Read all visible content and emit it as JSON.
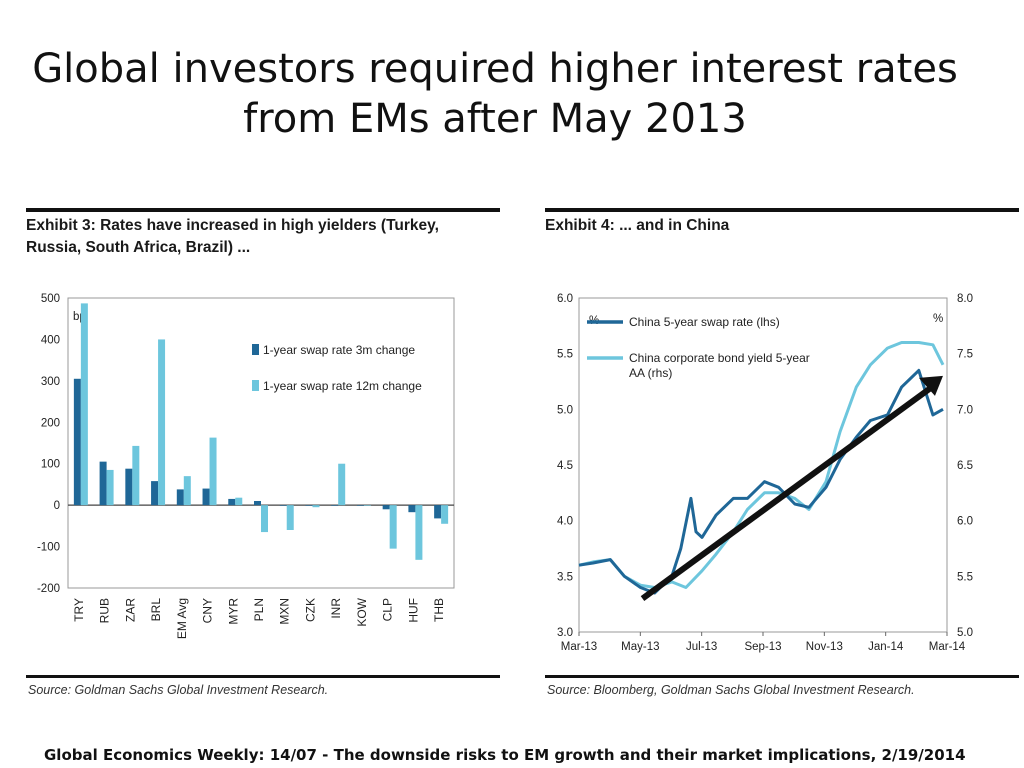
{
  "slide": {
    "title_line1": "Global investors required higher interest rates",
    "title_line2": "from EMs after May 2013",
    "footer": "Global Economics Weekly: 14/07 - The downside risks to EM growth and their market implications, 2/19/2014"
  },
  "colors": {
    "dark_blue": "#1f6797",
    "light_blue": "#6dc6dd",
    "arrow": "#111111"
  },
  "chart_data": [
    {
      "type": "bar",
      "title": "Exhibit 3: Rates have increased in high yielders (Turkey, Russia, South Africa, Brazil) ...",
      "source": "Source: Goldman Sachs Global Investment Research.",
      "unit_label": "bp",
      "categories": [
        "TRY",
        "RUB",
        "ZAR",
        "BRL",
        "EM Avg",
        "CNY",
        "MYR",
        "PLN",
        "MXN",
        "CZK",
        "INR",
        "KOW",
        "CLP",
        "HUF",
        "THB"
      ],
      "series": [
        {
          "name": "1-year swap rate 3m change",
          "values": [
            305,
            105,
            88,
            58,
            38,
            40,
            15,
            10,
            0,
            0,
            0,
            0,
            -10,
            -17,
            -32
          ]
        },
        {
          "name": "1-year swap rate 12m change",
          "values": [
            487,
            85,
            143,
            400,
            70,
            163,
            18,
            -65,
            -60,
            -5,
            100,
            0,
            -105,
            -132,
            -45
          ]
        }
      ],
      "ylim": [
        -200,
        500
      ],
      "yticks": [
        -200,
        -100,
        0,
        100,
        200,
        300,
        400,
        500
      ],
      "legend": "top-right"
    },
    {
      "type": "line",
      "title": "Exhibit 4: ... and in China",
      "source": "Source: Bloomberg, Goldman Sachs Global Investment Research.",
      "left_unit": "%",
      "right_unit": "%",
      "xlim": [
        "2013-03-01",
        "2014-03-01"
      ],
      "xticks": [
        "Mar-13",
        "May-13",
        "Jul-13",
        "Sep-13",
        "Nov-13",
        "Jan-14",
        "Mar-14"
      ],
      "ylim_left": [
        3.0,
        6.0
      ],
      "yticks_left": [
        "3.0",
        "3.5",
        "4.0",
        "4.5",
        "5.0",
        "5.5",
        "6.0"
      ],
      "ylim_right": [
        5.0,
        8.0
      ],
      "yticks_right": [
        "5.0",
        "5.5",
        "6.0",
        "6.5",
        "7.0",
        "7.5",
        "8.0"
      ],
      "series": [
        {
          "name": "China 5-year swap rate (lhs)",
          "axis": "left",
          "x": [
            "2013-03-01",
            "2013-03-15",
            "2013-04-01",
            "2013-04-15",
            "2013-05-01",
            "2013-05-15",
            "2013-06-01",
            "2013-06-10",
            "2013-06-20",
            "2013-06-25",
            "2013-07-01",
            "2013-07-15",
            "2013-08-01",
            "2013-08-15",
            "2013-09-01",
            "2013-09-15",
            "2013-10-01",
            "2013-10-15",
            "2013-11-01",
            "2013-11-15",
            "2013-12-01",
            "2013-12-15",
            "2014-01-01",
            "2014-01-15",
            "2014-02-01",
            "2014-02-15",
            "2014-02-25"
          ],
          "y": [
            3.6,
            3.62,
            3.65,
            3.5,
            3.4,
            3.35,
            3.5,
            3.75,
            4.2,
            3.9,
            3.85,
            4.05,
            4.2,
            4.2,
            4.35,
            4.3,
            4.15,
            4.12,
            4.3,
            4.55,
            4.75,
            4.9,
            4.95,
            5.2,
            5.35,
            4.95,
            5.0
          ]
        },
        {
          "name": "China corporate bond yield 5-year AA (rhs)",
          "axis": "right",
          "x": [
            "2013-03-01",
            "2013-03-15",
            "2013-04-01",
            "2013-04-15",
            "2013-05-01",
            "2013-05-15",
            "2013-06-01",
            "2013-06-15",
            "2013-07-01",
            "2013-07-15",
            "2013-08-01",
            "2013-08-15",
            "2013-09-01",
            "2013-09-15",
            "2013-10-01",
            "2013-10-15",
            "2013-11-01",
            "2013-11-15",
            "2013-12-01",
            "2013-12-15",
            "2014-01-01",
            "2014-01-15",
            "2014-02-01",
            "2014-02-15",
            "2014-02-25"
          ],
          "y": [
            5.6,
            5.63,
            5.65,
            5.5,
            5.42,
            5.4,
            5.45,
            5.4,
            5.55,
            5.7,
            5.9,
            6.1,
            6.25,
            6.25,
            6.2,
            6.1,
            6.35,
            6.8,
            7.2,
            7.4,
            7.55,
            7.6,
            7.6,
            7.58,
            7.4
          ]
        }
      ],
      "legend": "top-left"
    }
  ]
}
